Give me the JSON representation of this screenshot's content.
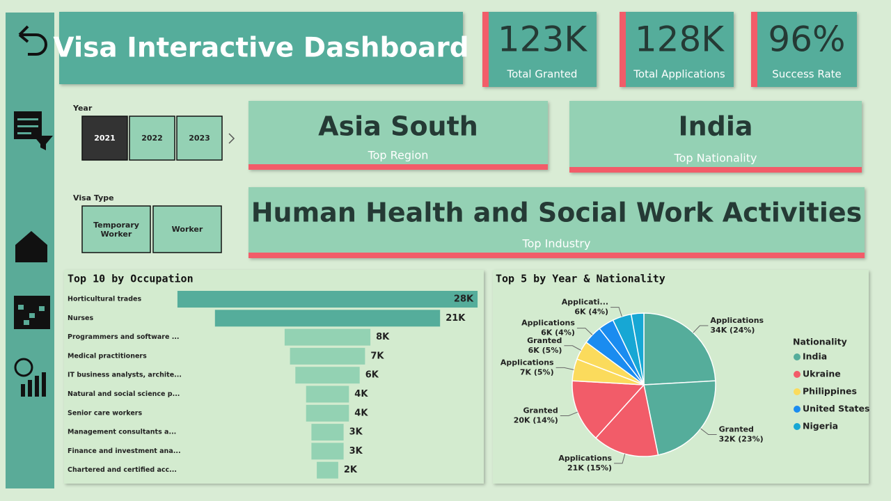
{
  "title": "Visa Interactive Dashboard",
  "kpis": [
    {
      "value": "123K",
      "label": "Total Granted"
    },
    {
      "value": "128K",
      "label": "Total Applications"
    },
    {
      "value": "96%",
      "label": "Success Rate"
    }
  ],
  "slicers": {
    "year": {
      "label": "Year",
      "options": [
        "2021",
        "2022",
        "2023"
      ],
      "selected": "2021"
    },
    "visa_type": {
      "label": "Visa Type",
      "options": [
        "Temporary Worker",
        "Worker"
      ]
    }
  },
  "cards": [
    {
      "value": "Asia South",
      "label": "Top Region"
    },
    {
      "value": "India",
      "label": "Top Nationality"
    },
    {
      "value": "Human Health and Social Work Activities",
      "label": "Top Industry"
    }
  ],
  "chart_data": [
    {
      "type": "bar",
      "title": "Top 10 by Occupation",
      "categories": [
        "Horticultural trades",
        "Nurses",
        "Programmers and software ...",
        "Medical practitioners",
        "IT business analysts, archite...",
        "Natural and social science p...",
        "Senior care workers",
        "Management consultants a...",
        "Finance and investment ana...",
        "Chartered and certified acc..."
      ],
      "values": [
        28,
        21,
        8,
        7,
        6,
        4,
        4,
        3,
        3,
        2
      ],
      "value_labels": [
        "28K",
        "21K",
        "8K",
        "7K",
        "6K",
        "4K",
        "4K",
        "3K",
        "3K",
        "2K"
      ],
      "colors": [
        "#55ad9b",
        "#55ad9b",
        "#93d2b3",
        "#93d2b3",
        "#93d2b3",
        "#93d2b3",
        "#93d2b3",
        "#93d2b3",
        "#93d2b3",
        "#93d2b3"
      ]
    },
    {
      "type": "pie",
      "title": "Top 5 by Year & Nationality",
      "categories": [
        "Applications",
        "Granted",
        "Applications",
        "Granted",
        "Applications",
        "Granted",
        "Applications",
        null,
        "Applicati...",
        null
      ],
      "values": [
        34,
        32,
        21,
        20,
        7,
        6,
        6,
        5,
        6,
        4
      ],
      "value_labels": [
        "34K (24%)",
        "32K (23%)",
        "21K (15%)",
        "20K (14%)",
        "7K (5%)",
        "6K (5%)",
        "6K (4%)",
        null,
        "6K (4%)",
        null
      ],
      "colors": [
        "#55ad9b",
        "#55ad9b",
        "#f25c69",
        "#f25c69",
        "#fbdb5c",
        "#fbdb5c",
        "#1a8cf0",
        "#1a8cf0",
        "#17a7d4",
        "#17a7d4"
      ],
      "legend": {
        "title": "Nationality",
        "items": [
          "India",
          "Ukraine",
          "Philippines",
          "United States",
          "Nigeria"
        ],
        "colors": [
          "#55ad9b",
          "#f25c69",
          "#fbdb5c",
          "#1a8cf0",
          "#17a7d4"
        ]
      }
    }
  ]
}
